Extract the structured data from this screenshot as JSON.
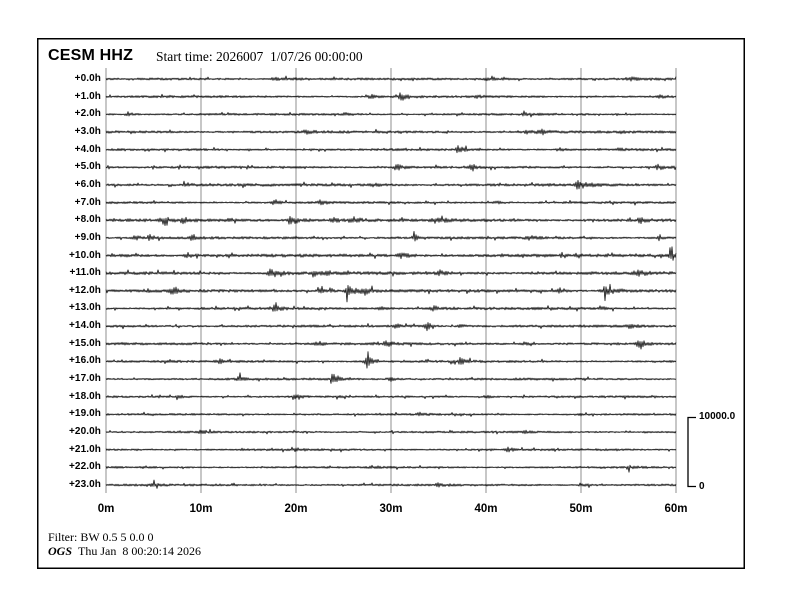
{
  "header": {
    "station_channel": "CESM HHZ",
    "start_time_label": "Start time: 2026007  1/07/26 00:00:00"
  },
  "scale_bar": {
    "max_label": "10000.0",
    "min_label": "0"
  },
  "footer": {
    "filter": "Filter: BW 0.5 5 0.0 0",
    "agency": "OGS",
    "timestamp": "Thu Jan  8 00:20:14 2026"
  },
  "chart_data": {
    "type": "line",
    "subtype": "helicorder-seismogram",
    "title": "CESM HHZ",
    "station": "CESM",
    "channel": "HHZ",
    "start_time": "2026007 1/07/26 00:00:00",
    "grid": "vertical-only",
    "x_axis": {
      "unit": "minutes",
      "range": [
        0,
        60
      ],
      "tick_labels": [
        "0m",
        "10m",
        "20m",
        "30m",
        "40m",
        "50m",
        "60m"
      ],
      "tick_values": [
        0,
        10,
        20,
        30,
        40,
        50,
        60
      ]
    },
    "row_spacing_hours": 1.0,
    "amplitude_scale": {
      "max": 10000.0,
      "min": 0
    },
    "traces": [
      {
        "label": "+0.0h",
        "noise": 1.0,
        "events": [
          {
            "t": 17.5,
            "a": 1.3,
            "d": 25
          },
          {
            "t": 40.0,
            "a": 1.0,
            "d": 20
          },
          {
            "t": 55.0,
            "a": 1.2,
            "d": 15
          }
        ]
      },
      {
        "label": "+1.0h",
        "noise": 1.0,
        "events": [
          {
            "t": 27.9,
            "a": 1.8,
            "d": 6
          },
          {
            "t": 31.0,
            "a": 4.5,
            "d": 7
          },
          {
            "t": 39.0,
            "a": 1.8,
            "d": 6
          },
          {
            "t": 58.0,
            "a": 1.6,
            "d": 8
          }
        ]
      },
      {
        "label": "+2.0h",
        "noise": 0.95,
        "events": [
          {
            "t": 2.3,
            "a": 2.2,
            "d": 5
          },
          {
            "t": 25.0,
            "a": 1.2,
            "d": 8
          },
          {
            "t": 44.0,
            "a": 1.2,
            "d": 6
          }
        ]
      },
      {
        "label": "+3.0h",
        "noise": 1.15,
        "events": [
          {
            "t": 21.0,
            "a": 1.3,
            "d": 8
          },
          {
            "t": 44.3,
            "a": 2.6,
            "d": 6
          },
          {
            "t": 45.8,
            "a": 2.2,
            "d": 6
          }
        ]
      },
      {
        "label": "+4.0h",
        "noise": 1.0,
        "events": [
          {
            "t": 37.1,
            "a": 3.2,
            "d": 5
          },
          {
            "t": 47.6,
            "a": 1.8,
            "d": 6
          },
          {
            "t": 54.0,
            "a": 1.6,
            "d": 6
          }
        ]
      },
      {
        "label": "+5.0h",
        "noise": 1.05,
        "events": [
          {
            "t": 30.6,
            "a": 3.4,
            "d": 5
          },
          {
            "t": 38.5,
            "a": 3.4,
            "d": 5
          },
          {
            "t": 58.1,
            "a": 2.8,
            "d": 6
          }
        ]
      },
      {
        "label": "+6.0h",
        "noise": 1.25,
        "events": [
          {
            "t": 8.3,
            "a": 3.2,
            "d": 5
          },
          {
            "t": 28.0,
            "a": 1.6,
            "d": 8
          },
          {
            "t": 49.7,
            "a": 3.6,
            "d": 9
          }
        ]
      },
      {
        "label": "+7.0h",
        "noise": 1.0,
        "events": [
          {
            "t": 17.8,
            "a": 3.2,
            "d": 4
          },
          {
            "t": 22.5,
            "a": 1.8,
            "d": 6
          },
          {
            "t": 41.0,
            "a": 1.6,
            "d": 6
          }
        ]
      },
      {
        "label": "+8.0h",
        "noise": 1.35,
        "events": [
          {
            "t": 6.0,
            "a": 3.0,
            "d": 5
          },
          {
            "t": 8.1,
            "a": 2.6,
            "d": 5
          },
          {
            "t": 19.5,
            "a": 3.6,
            "d": 10
          },
          {
            "t": 23.8,
            "a": 2.6,
            "d": 6
          },
          {
            "t": 26.0,
            "a": 2.8,
            "d": 6
          },
          {
            "t": 35.0,
            "a": 2.2,
            "d": 6
          },
          {
            "t": 56.2,
            "a": 2.4,
            "d": 6
          }
        ]
      },
      {
        "label": "+9.0h",
        "noise": 1.1,
        "events": [
          {
            "t": 3.0,
            "a": 2.6,
            "d": 5
          },
          {
            "t": 4.6,
            "a": 2.8,
            "d": 5
          },
          {
            "t": 9.1,
            "a": 2.0,
            "d": 5
          },
          {
            "t": 32.5,
            "a": 2.6,
            "d": 6
          },
          {
            "t": 44.5,
            "a": 2.2,
            "d": 6
          },
          {
            "t": 58.3,
            "a": 2.6,
            "d": 5
          }
        ]
      },
      {
        "label": "+10.0h",
        "noise": 1.4,
        "events": [
          {
            "t": 8.5,
            "a": 2.6,
            "d": 6
          },
          {
            "t": 31.0,
            "a": 2.0,
            "d": 8
          },
          {
            "t": 59.5,
            "a": 3.6,
            "d": 6
          }
        ]
      },
      {
        "label": "+11.0h",
        "noise": 1.35,
        "events": [
          {
            "t": 17.3,
            "a": 4.2,
            "d": 9
          },
          {
            "t": 21.8,
            "a": 2.6,
            "d": 6
          },
          {
            "t": 23.3,
            "a": 2.4,
            "d": 5
          },
          {
            "t": 35.0,
            "a": 2.6,
            "d": 6
          },
          {
            "t": 55.9,
            "a": 3.4,
            "d": 7
          }
        ]
      },
      {
        "label": "+12.0h",
        "noise": 1.3,
        "events": [
          {
            "t": 7.0,
            "a": 3.0,
            "d": 5
          },
          {
            "t": 22.5,
            "a": 2.8,
            "d": 7
          },
          {
            "t": 25.5,
            "a": 5.5,
            "d": 7
          },
          {
            "t": 27.3,
            "a": 3.0,
            "d": 6
          },
          {
            "t": 47.8,
            "a": 2.6,
            "d": 6
          },
          {
            "t": 52.5,
            "a": 4.2,
            "d": 9
          }
        ]
      },
      {
        "label": "+13.0h",
        "noise": 1.15,
        "events": [
          {
            "t": 17.6,
            "a": 2.4,
            "d": 7
          },
          {
            "t": 28.8,
            "a": 1.8,
            "d": 6
          },
          {
            "t": 34.5,
            "a": 2.8,
            "d": 5
          },
          {
            "t": 52.0,
            "a": 1.6,
            "d": 6
          }
        ]
      },
      {
        "label": "+14.0h",
        "noise": 1.1,
        "events": [
          {
            "t": 30.5,
            "a": 2.0,
            "d": 6
          },
          {
            "t": 33.8,
            "a": 3.8,
            "d": 4
          },
          {
            "t": 37.2,
            "a": 2.0,
            "d": 6
          },
          {
            "t": 55.0,
            "a": 1.8,
            "d": 6
          }
        ]
      },
      {
        "label": "+15.0h",
        "noise": 1.1,
        "events": [
          {
            "t": 22.3,
            "a": 2.4,
            "d": 6
          },
          {
            "t": 29.4,
            "a": 2.8,
            "d": 6
          },
          {
            "t": 44.0,
            "a": 1.6,
            "d": 6
          },
          {
            "t": 56.2,
            "a": 6.5,
            "d": 4
          }
        ]
      },
      {
        "label": "+16.0h",
        "noise": 1.05,
        "events": [
          {
            "t": 12.0,
            "a": 1.8,
            "d": 5
          },
          {
            "t": 27.5,
            "a": 7.0,
            "d": 4
          },
          {
            "t": 37.2,
            "a": 3.2,
            "d": 5
          }
        ]
      },
      {
        "label": "+17.0h",
        "noise": 1.0,
        "events": [
          {
            "t": 14.0,
            "a": 2.2,
            "d": 5
          },
          {
            "t": 24.0,
            "a": 6.5,
            "d": 4
          },
          {
            "t": 30.0,
            "a": 1.8,
            "d": 6
          }
        ]
      },
      {
        "label": "+18.0h",
        "noise": 0.95,
        "events": [
          {
            "t": 7.5,
            "a": 2.2,
            "d": 5
          },
          {
            "t": 20.0,
            "a": 1.3,
            "d": 6
          },
          {
            "t": 40.0,
            "a": 1.3,
            "d": 6
          }
        ]
      },
      {
        "label": "+19.0h",
        "noise": 0.9,
        "events": [
          {
            "t": 33.0,
            "a": 1.3,
            "d": 6
          },
          {
            "t": 50.0,
            "a": 1.2,
            "d": 6
          }
        ]
      },
      {
        "label": "+20.0h",
        "noise": 0.9,
        "events": [
          {
            "t": 10.0,
            "a": 1.2,
            "d": 6
          },
          {
            "t": 44.0,
            "a": 1.4,
            "d": 6
          }
        ]
      },
      {
        "label": "+21.0h",
        "noise": 0.95,
        "events": [
          {
            "t": 20.0,
            "a": 1.3,
            "d": 6
          },
          {
            "t": 42.3,
            "a": 4.2,
            "d": 3
          }
        ]
      },
      {
        "label": "+22.0h",
        "noise": 0.9,
        "events": [
          {
            "t": 28.0,
            "a": 1.2,
            "d": 6
          },
          {
            "t": 55.0,
            "a": 1.4,
            "d": 6
          }
        ]
      },
      {
        "label": "+23.0h",
        "noise": 1.0,
        "events": [
          {
            "t": 5.0,
            "a": 1.4,
            "d": 6
          },
          {
            "t": 35.0,
            "a": 1.8,
            "d": 6
          },
          {
            "t": 50.0,
            "a": 1.4,
            "d": 6
          }
        ]
      }
    ],
    "colors": {
      "trace": "#000000",
      "grid": "#8f8f8f",
      "border": "#000000"
    }
  }
}
